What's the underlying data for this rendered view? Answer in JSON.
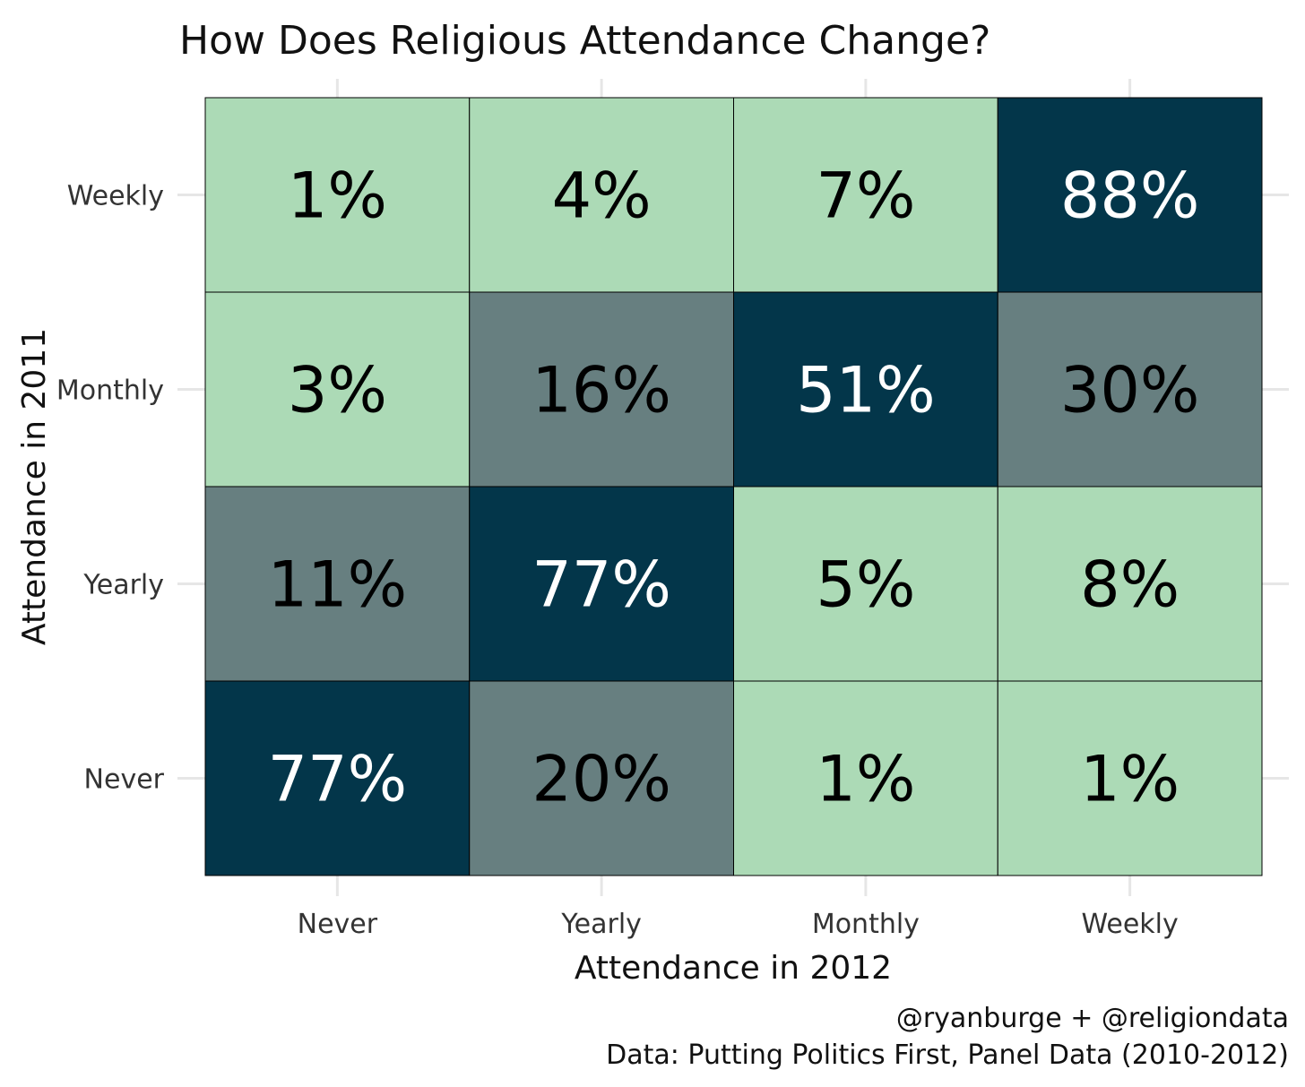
{
  "chart_data": {
    "type": "heatmap",
    "title": "How Does Religious Attendance Change?",
    "xlabel": "Attendance in 2012",
    "ylabel": "Attendance in 2011",
    "x_categories": [
      "Never",
      "Yearly",
      "Monthly",
      "Weekly"
    ],
    "y_categories": [
      "Never",
      "Yearly",
      "Monthly",
      "Weekly"
    ],
    "values": [
      {
        "y": "Weekly",
        "row": [
          1,
          4,
          7,
          88
        ]
      },
      {
        "y": "Monthly",
        "row": [
          3,
          16,
          51,
          30
        ]
      },
      {
        "y": "Yearly",
        "row": [
          11,
          77,
          5,
          8
        ]
      },
      {
        "y": "Never",
        "row": [
          77,
          20,
          1,
          1
        ]
      }
    ],
    "value_suffix": "%",
    "fill_bins": [
      {
        "max": 10,
        "color": "#acdab6",
        "text_color": "#000000"
      },
      {
        "max": 50,
        "color": "#677f80",
        "text_color": "#000000"
      },
      {
        "max": 100,
        "color": "#03364a",
        "text_color": "#ffffff"
      }
    ],
    "grid": true,
    "legend": "none"
  },
  "caption": {
    "line1": "@ryanburge + @religiondata",
    "line2": "Data: Putting Politics First, Panel Data (2010-2012)"
  }
}
